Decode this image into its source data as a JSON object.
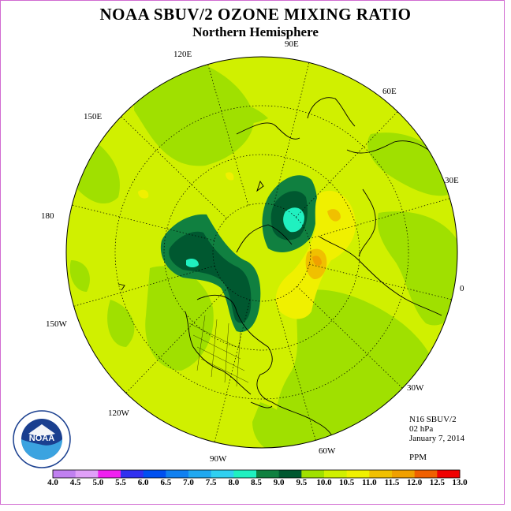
{
  "header": {
    "title": "NOAA SBUV/2 OZONE MIXING RATIO",
    "subtitle": "Northern Hemisphere"
  },
  "longitude_labels": [
    "90E",
    "60E",
    "30E",
    "0",
    "30W",
    "60W",
    "90W",
    "120W",
    "150W",
    "180",
    "150E",
    "120E"
  ],
  "info": {
    "satellite": "N16 SBUV/2",
    "level": "02 hPa",
    "date": "January 7, 2014",
    "units": "PPM"
  },
  "logo": {
    "text": "NOAA"
  },
  "colorbar": {
    "labels": [
      "4.0",
      "4.5",
      "5.0",
      "5.5",
      "6.0",
      "6.5",
      "7.0",
      "7.5",
      "8.0",
      "8.5",
      "9.0",
      "9.5",
      "10.0",
      "10.5",
      "11.0",
      "11.5",
      "12.0",
      "12.5",
      "13.0"
    ],
    "colors": [
      "#c080f0",
      "#e0a0f8",
      "#f020f0",
      "#3030f0",
      "#0050f0",
      "#1080f0",
      "#20a8f0",
      "#30d0f0",
      "#20f0c0",
      "#108040",
      "#005830",
      "#a0e000",
      "#d0f000",
      "#f0f000",
      "#f0c000",
      "#f0a000",
      "#f06000",
      "#f00000",
      "#a05030"
    ]
  },
  "palette": {
    "background": "#d0f000",
    "frame": "#d16bd1"
  }
}
